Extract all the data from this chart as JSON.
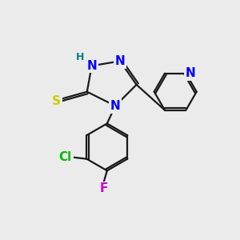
{
  "background_color": "#ebebeb",
  "bond_color": "#1a1a1a",
  "bond_width": 1.6,
  "atom_colors": {
    "N": "#0000ff",
    "S": "#cccc00",
    "Cl": "#00bb00",
    "F": "#cc00cc",
    "H": "#008080",
    "C": "#1a1a1a"
  },
  "font_size": 11,
  "font_size_h": 9
}
